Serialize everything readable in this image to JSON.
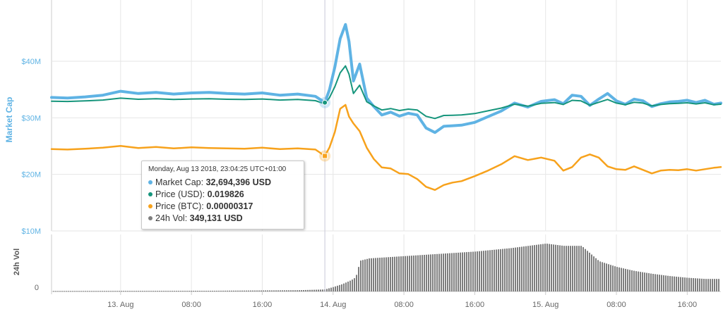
{
  "colors": {
    "market_cap": "#5fb3e4",
    "price_usd": "#16957c",
    "price_btc": "#f7a21c",
    "volume": "#7e7e7e",
    "grid": "#e6e6e6",
    "axis_label": "#5fb3e4",
    "text": "#666666"
  },
  "chart_data": [
    {
      "type": "line",
      "ylabel": "Market Cap",
      "y_ticks": [
        "$10M",
        "$20M",
        "$30M",
        "$40M"
      ],
      "ylim": [
        10000000,
        50000000
      ],
      "x_ticks": [
        "13. Aug",
        "08:00",
        "16:00",
        "14. Aug",
        "08:00",
        "16:00",
        "15. Aug",
        "08:00",
        "16:00"
      ],
      "x_tick_hours": [
        0,
        8,
        16,
        24,
        32,
        40,
        48,
        56,
        64
      ],
      "xlim_hours": [
        -7.8,
        67.8
      ],
      "grid": true,
      "crosshair_hour": 23.07,
      "series": [
        {
          "name": "Market Cap",
          "key": "market_cap",
          "x": [
            -7.8,
            -6,
            -4,
            -2,
            0,
            2,
            4,
            6,
            8,
            10,
            12,
            14,
            16,
            18,
            20,
            22,
            23.07,
            23.6,
            24.2,
            24.8,
            25.4,
            25.8,
            26.3,
            27,
            27.8,
            28.6,
            29.5,
            30.5,
            31.5,
            32.5,
            33.5,
            34.5,
            35.5,
            36.5,
            37.5,
            38.5,
            40,
            41.5,
            43,
            44.5,
            46,
            47.5,
            49,
            50,
            51,
            52,
            53,
            54,
            55,
            56,
            57,
            58,
            59,
            60,
            61,
            62,
            63,
            64,
            65,
            66,
            67,
            67.8
          ],
          "values": [
            33600000,
            33500000,
            33700000,
            34000000,
            34700000,
            34300000,
            34500000,
            34200000,
            34400000,
            34500000,
            34300000,
            34200000,
            34400000,
            34000000,
            34200000,
            33800000,
            32694396,
            35000000,
            39000000,
            44000000,
            46500000,
            43500000,
            36500000,
            39500000,
            33500000,
            32000000,
            30500000,
            31000000,
            30300000,
            30800000,
            30500000,
            28200000,
            27400000,
            28500000,
            28600000,
            28700000,
            29200000,
            30200000,
            31200000,
            32600000,
            31900000,
            32900000,
            33200000,
            32500000,
            34000000,
            33800000,
            32200000,
            33300000,
            34300000,
            33000000,
            32400000,
            33300000,
            33000000,
            32000000,
            32500000,
            32800000,
            32900000,
            33100000,
            32700000,
            33100000,
            32400000,
            32600000
          ]
        },
        {
          "name": "Price (USD)",
          "key": "price_usd",
          "x": [
            -7.8,
            -6,
            -4,
            -2,
            0,
            2,
            4,
            6,
            8,
            10,
            12,
            14,
            16,
            18,
            20,
            22,
            23.07,
            23.6,
            24.2,
            24.8,
            25.4,
            25.8,
            26.3,
            27,
            27.8,
            28.6,
            29.5,
            30.5,
            31.5,
            32.5,
            33.5,
            34.5,
            35.5,
            36.5,
            37.5,
            38.5,
            40,
            41.5,
            43,
            44.5,
            46,
            47.5,
            49,
            50,
            51,
            52,
            53,
            54,
            55,
            56,
            57,
            58,
            59,
            60,
            61,
            62,
            63,
            64,
            65,
            66,
            67,
            67.8
          ],
          "values": [
            0.02043,
            0.02037,
            0.02049,
            0.02068,
            0.0211,
            0.02086,
            0.02098,
            0.0208,
            0.02092,
            0.02098,
            0.02086,
            0.0208,
            0.02092,
            0.02068,
            0.0208,
            0.02055,
            0.019826,
            0.02122,
            0.02365,
            0.02668,
            0.0282,
            0.02638,
            0.02213,
            0.02395,
            0.02031,
            0.0194,
            0.0185,
            0.0188,
            0.01837,
            0.01868,
            0.0185,
            0.0171,
            0.01662,
            0.01728,
            0.01734,
            0.0174,
            0.01771,
            0.01831,
            0.01892,
            0.01977,
            0.01934,
            0.01995,
            0.02013,
            0.01971,
            0.02062,
            0.0205,
            0.01953,
            0.02019,
            0.0208,
            0.02001,
            0.01965,
            0.02019,
            0.02001,
            0.0194,
            0.01971,
            0.01989,
            0.01995,
            0.02007,
            0.01983,
            0.02007,
            0.01965,
            0.01977
          ]
        },
        {
          "name": "Price (BTC)",
          "key": "price_btc",
          "x": [
            -7.8,
            -6,
            -4,
            -2,
            0,
            2,
            4,
            6,
            8,
            10,
            12,
            14,
            16,
            18,
            20,
            22,
            23.07,
            23.6,
            24.2,
            24.8,
            25.4,
            25.8,
            26.3,
            27,
            27.8,
            28.6,
            29.5,
            30.5,
            31.5,
            32.5,
            33.5,
            34.5,
            35.5,
            36.5,
            37.5,
            38.5,
            40,
            41.5,
            43,
            44.5,
            46,
            47.5,
            49,
            50,
            51,
            52,
            53,
            54,
            55,
            56,
            57,
            58,
            59,
            60,
            61,
            62,
            63,
            64,
            65,
            66,
            67,
            67.8
          ],
          "values": [
            3.436e-06,
            3.422e-06,
            3.45e-06,
            3.491e-06,
            3.561e-06,
            3.478e-06,
            3.519e-06,
            3.464e-06,
            3.505e-06,
            3.478e-06,
            3.464e-06,
            3.45e-06,
            3.491e-06,
            3.436e-06,
            3.464e-06,
            3.422e-06,
            3.17e-06,
            3.505e-06,
            4.109e-06,
            5.017e-06,
            5.168e-06,
            4.713e-06,
            4.439e-06,
            4.136e-06,
            3.492e-06,
            3.052e-06,
            2.721e-06,
            2.679e-06,
            2.486e-06,
            2.458e-06,
            2.266e-06,
            1.963e-06,
            1.839e-06,
            2.032e-06,
            2.128e-06,
            2.183e-06,
            2.38e-06,
            2.596e-06,
            2.844e-06,
            3.161e-06,
            3.01e-06,
            3.106e-06,
            2.982e-06,
            2.596e-06,
            2.734e-06,
            3.106e-06,
            3.23e-06,
            3.106e-06,
            2.762e-06,
            2.651e-06,
            2.624e-06,
            2.761e-06,
            2.624e-06,
            2.486e-06,
            2.596e-06,
            2.624e-06,
            2.61e-06,
            2.651e-06,
            2.596e-06,
            2.651e-06,
            2.706e-06,
            2.734e-06
          ]
        }
      ]
    },
    {
      "type": "bar",
      "ylabel": "24h Vol",
      "y_ticks": [
        "0"
      ],
      "x": [
        -7.8,
        10,
        20,
        23,
        24,
        25,
        26,
        26.5,
        27,
        28,
        32,
        36,
        40,
        44,
        48,
        50,
        52,
        54,
        56,
        58,
        60,
        62,
        64,
        66,
        67.8
      ],
      "values": [
        80000,
        120000,
        220000,
        349131,
        800000,
        1300000,
        2000000,
        2500000,
        5400000,
        5800000,
        6200000,
        6600000,
        7000000,
        7600000,
        8400000,
        8000000,
        8000000,
        5300000,
        4300000,
        3600000,
        3100000,
        2700000,
        2400000,
        2200000,
        2200000
      ],
      "series": [
        {
          "name": "24h Vol",
          "key": "volume"
        }
      ]
    }
  ],
  "tooltip": {
    "header": "Monday, Aug 13 2018, 23:04:25 UTC+01:00",
    "rows": [
      {
        "key": "market_cap",
        "label": "Market Cap: ",
        "value": "32,694,396 USD"
      },
      {
        "key": "price_usd",
        "label": "Price (USD): ",
        "value": "0.019826"
      },
      {
        "key": "price_btc",
        "label": "Price (BTC): ",
        "value": "0.00000317"
      },
      {
        "key": "volume",
        "label": "24h Vol: ",
        "value": "349,131 USD"
      }
    ]
  }
}
